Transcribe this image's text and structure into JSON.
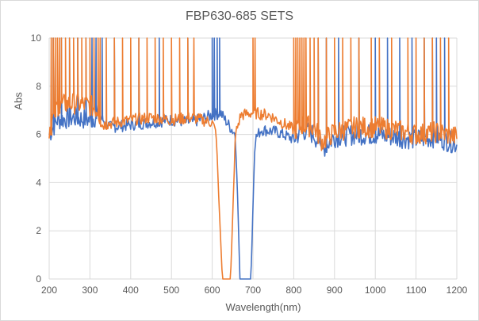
{
  "chart_data": {
    "type": "line",
    "title": "FBP630-685 SETS",
    "xlabel": "Wavelength(nm)",
    "ylabel": "Abs",
    "xlim": [
      200,
      1200
    ],
    "ylim": [
      0,
      10
    ],
    "xticks": [
      "200",
      "300",
      "400",
      "500",
      "600",
      "700",
      "800",
      "900",
      "1000",
      "1100",
      "1200"
    ],
    "yticks": [
      "0",
      "2",
      "4",
      "6",
      "8",
      "10"
    ],
    "grid": true,
    "legend": "none",
    "series": [
      {
        "color": "#4472C4",
        "points": [
          [
            200,
            6.0
          ],
          [
            220,
            6.6
          ],
          [
            260,
            6.7
          ],
          [
            300,
            6.6
          ],
          [
            320,
            6.8
          ],
          [
            350,
            6.3
          ],
          [
            400,
            6.4
          ],
          [
            450,
            6.5
          ],
          [
            500,
            6.6
          ],
          [
            550,
            6.5
          ],
          [
            600,
            6.8
          ],
          [
            620,
            6.9
          ],
          [
            640,
            6.4
          ],
          [
            657,
            6.0
          ],
          [
            663,
            3.0
          ],
          [
            668,
            0
          ],
          [
            695,
            0
          ],
          [
            700,
            3.0
          ],
          [
            705,
            5.8
          ],
          [
            720,
            6.2
          ],
          [
            760,
            6.1
          ],
          [
            800,
            5.8
          ],
          [
            820,
            6.2
          ],
          [
            850,
            6.0
          ],
          [
            870,
            5.4
          ],
          [
            900,
            5.9
          ],
          [
            950,
            6.0
          ],
          [
            1000,
            6.0
          ],
          [
            1050,
            5.9
          ],
          [
            1100,
            5.8
          ],
          [
            1150,
            5.9
          ],
          [
            1200,
            5.6
          ]
        ],
        "spikes_to_10": [
          210,
          230,
          250,
          270,
          290,
          305,
          315,
          330,
          360,
          420,
          470,
          540,
          600,
          605,
          612,
          618,
          860,
          880,
          910,
          960,
          1000,
          1030,
          1060,
          1090,
          1120,
          1140,
          1150,
          1170
        ]
      },
      {
        "color": "#ED7D31",
        "points": [
          [
            200,
            6.2
          ],
          [
            220,
            7.2
          ],
          [
            260,
            7.3
          ],
          [
            300,
            7.2
          ],
          [
            320,
            7.0
          ],
          [
            330,
            6.4
          ],
          [
            400,
            6.6
          ],
          [
            450,
            6.7
          ],
          [
            500,
            6.6
          ],
          [
            550,
            6.7
          ],
          [
            600,
            6.5
          ],
          [
            610,
            6.0
          ],
          [
            617,
            3.0
          ],
          [
            625,
            0
          ],
          [
            645,
            0
          ],
          [
            651,
            3.0
          ],
          [
            657,
            6.0
          ],
          [
            670,
            6.8
          ],
          [
            700,
            6.9
          ],
          [
            740,
            6.8
          ],
          [
            780,
            6.4
          ],
          [
            800,
            6.2
          ],
          [
            820,
            6.4
          ],
          [
            850,
            6.3
          ],
          [
            870,
            5.7
          ],
          [
            900,
            6.1
          ],
          [
            950,
            6.3
          ],
          [
            1000,
            6.3
          ],
          [
            1050,
            6.2
          ],
          [
            1100,
            6.0
          ],
          [
            1150,
            6.1
          ],
          [
            1200,
            5.9
          ]
        ],
        "spikes_to_10": [
          205,
          210,
          215,
          220,
          225,
          230,
          240,
          250,
          260,
          270,
          280,
          290,
          300,
          310,
          320,
          325,
          340,
          360,
          380,
          400,
          420,
          440,
          460,
          480,
          500,
          520,
          540,
          555,
          700,
          705,
          800,
          805,
          810,
          815,
          820,
          825,
          830,
          840,
          850,
          860,
          880,
          900,
          920,
          940,
          960,
          990,
          1010,
          1040,
          1080,
          1100,
          1120,
          1140,
          1160,
          1180
        ]
      }
    ]
  }
}
